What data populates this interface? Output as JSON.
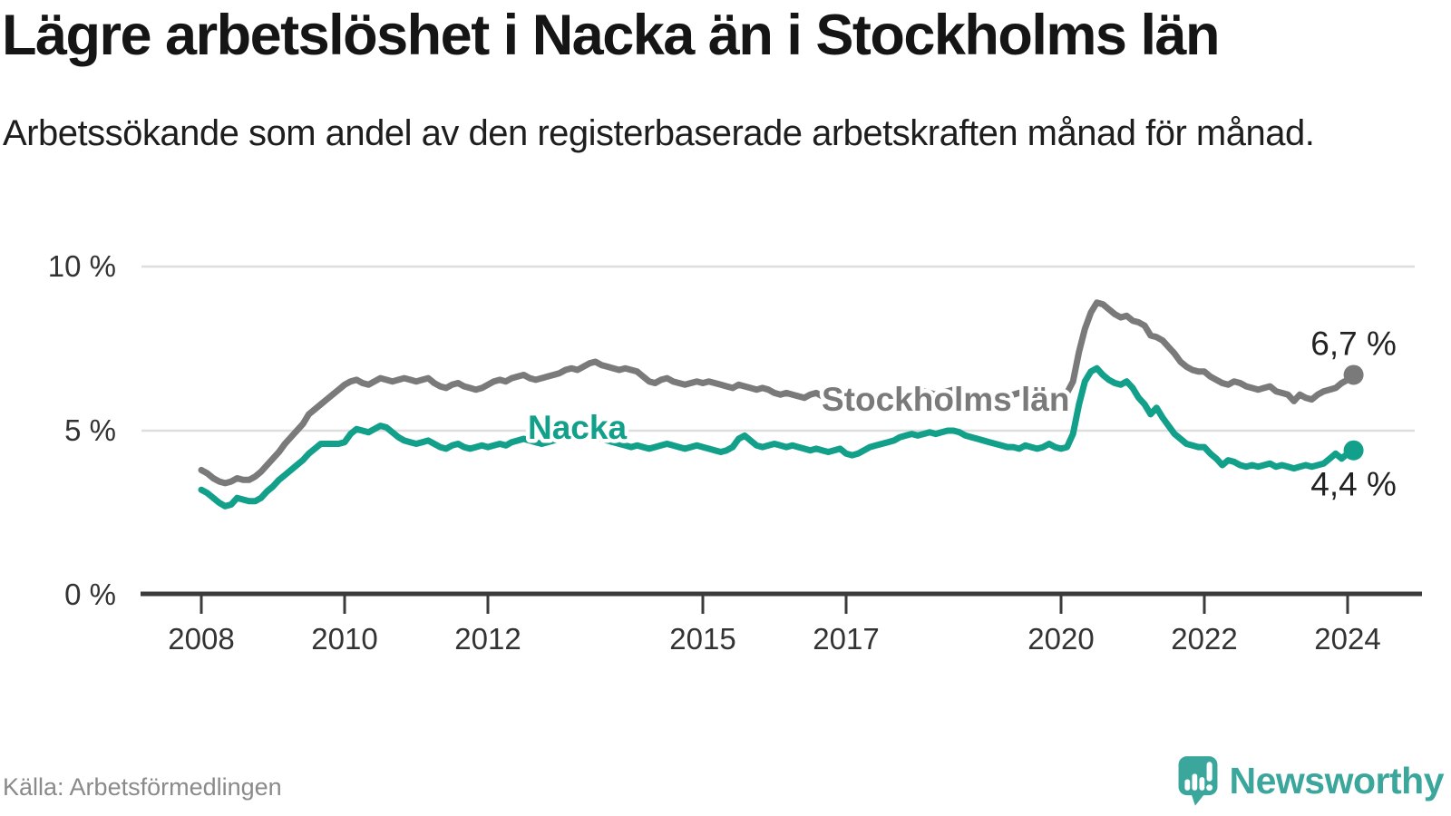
{
  "header": {
    "title": "Lägre arbetslöshet i Nacka än i Stockholms län",
    "subtitle": "Arbetssökande som andel av den registerbaserade arbetskraften månad för månad."
  },
  "footer": {
    "source": "Källa: Arbetsförmedlingen",
    "brand": "Newsworthy",
    "logo_icon": "newsworthy-speech-bubble-bar-chart-icon"
  },
  "colors": {
    "nacka_teal": "#12a08b",
    "stockholm_gray": "#7a7a7a",
    "gridline": "#dedede",
    "axis": "#3b3b3b",
    "tick_text": "#333333",
    "annotation_text": "#222222",
    "title_text": "#151515",
    "source_text": "#8a8a8a",
    "brand_teal": "#3ba79c"
  },
  "chart_data": {
    "type": "line",
    "unit": "%",
    "frequency": "monthly",
    "x_range": {
      "start": "2008-01",
      "end": "2024-02"
    },
    "x_ticks": [
      2008,
      2010,
      2012,
      2015,
      2017,
      2020,
      2022,
      2024
    ],
    "y_ticks": [
      {
        "value": 0,
        "label": "0 %"
      },
      {
        "value": 5,
        "label": "5 %"
      },
      {
        "value": 10,
        "label": "10 %"
      }
    ],
    "ylim": [
      0,
      10.5
    ],
    "grid": "horizontal",
    "series": [
      {
        "name": "Stockholms län",
        "color": "#7a7a7a",
        "end_value": 6.7,
        "end_label": "6,7 %",
        "values": [
          3.8,
          3.7,
          3.55,
          3.45,
          3.4,
          3.45,
          3.55,
          3.5,
          3.5,
          3.6,
          3.75,
          3.95,
          4.15,
          4.35,
          4.6,
          4.8,
          5.0,
          5.2,
          5.5,
          5.65,
          5.8,
          5.95,
          6.1,
          6.25,
          6.4,
          6.5,
          6.55,
          6.45,
          6.4,
          6.5,
          6.6,
          6.55,
          6.5,
          6.55,
          6.6,
          6.55,
          6.5,
          6.55,
          6.6,
          6.45,
          6.35,
          6.3,
          6.4,
          6.45,
          6.35,
          6.3,
          6.25,
          6.3,
          6.4,
          6.5,
          6.55,
          6.5,
          6.6,
          6.65,
          6.7,
          6.6,
          6.55,
          6.6,
          6.65,
          6.7,
          6.75,
          6.85,
          6.9,
          6.85,
          6.95,
          7.05,
          7.1,
          7.0,
          6.95,
          6.9,
          6.85,
          6.9,
          6.85,
          6.8,
          6.65,
          6.5,
          6.45,
          6.55,
          6.6,
          6.5,
          6.45,
          6.4,
          6.45,
          6.5,
          6.45,
          6.5,
          6.45,
          6.4,
          6.35,
          6.3,
          6.4,
          6.35,
          6.3,
          6.25,
          6.3,
          6.25,
          6.15,
          6.1,
          6.15,
          6.1,
          6.05,
          6.0,
          6.1,
          6.15,
          6.05,
          6.0,
          6.05,
          6.1,
          6.0,
          5.95,
          6.0,
          6.05,
          6.0,
          5.95,
          6.05,
          6.1,
          6.05,
          6.1,
          6.15,
          6.1,
          6.15,
          6.2,
          6.15,
          6.1,
          6.15,
          6.2,
          6.25,
          6.2,
          6.15,
          6.1,
          6.05,
          6.1,
          6.1,
          6.05,
          6.0,
          6.05,
          6.1,
          6.15,
          6.2,
          6.15,
          6.1,
          6.15,
          6.1,
          6.1,
          6.1,
          6.15,
          6.5,
          7.4,
          8.1,
          8.6,
          8.9,
          8.85,
          8.7,
          8.55,
          8.45,
          8.5,
          8.35,
          8.3,
          8.2,
          7.9,
          7.85,
          7.75,
          7.55,
          7.35,
          7.1,
          6.95,
          6.85,
          6.8,
          6.8,
          6.65,
          6.55,
          6.45,
          6.4,
          6.5,
          6.45,
          6.35,
          6.3,
          6.25,
          6.3,
          6.35,
          6.2,
          6.15,
          6.1,
          5.9,
          6.1,
          6.0,
          5.95,
          6.1,
          6.2,
          6.25,
          6.3,
          6.45,
          6.55,
          6.7
        ]
      },
      {
        "name": "Nacka",
        "color": "#12a08b",
        "end_value": 4.4,
        "end_label": "4,4 %",
        "values": [
          3.2,
          3.1,
          2.95,
          2.8,
          2.7,
          2.75,
          2.95,
          2.9,
          2.85,
          2.85,
          2.95,
          3.15,
          3.3,
          3.5,
          3.65,
          3.8,
          3.95,
          4.1,
          4.3,
          4.45,
          4.6,
          4.6,
          4.6,
          4.6,
          4.65,
          4.9,
          5.05,
          5.0,
          4.95,
          5.05,
          5.15,
          5.1,
          4.95,
          4.8,
          4.7,
          4.65,
          4.6,
          4.65,
          4.7,
          4.6,
          4.5,
          4.45,
          4.55,
          4.6,
          4.5,
          4.45,
          4.5,
          4.55,
          4.5,
          4.55,
          4.6,
          4.55,
          4.65,
          4.7,
          4.75,
          4.7,
          4.65,
          4.6,
          4.65,
          4.7,
          4.75,
          4.8,
          4.85,
          4.8,
          4.75,
          4.8,
          4.85,
          4.75,
          4.7,
          4.65,
          4.6,
          4.55,
          4.5,
          4.55,
          4.5,
          4.45,
          4.5,
          4.55,
          4.6,
          4.55,
          4.5,
          4.45,
          4.5,
          4.55,
          4.5,
          4.45,
          4.4,
          4.35,
          4.4,
          4.5,
          4.75,
          4.85,
          4.7,
          4.55,
          4.5,
          4.55,
          4.6,
          4.55,
          4.5,
          4.55,
          4.5,
          4.45,
          4.4,
          4.45,
          4.4,
          4.35,
          4.4,
          4.45,
          4.3,
          4.25,
          4.3,
          4.4,
          4.5,
          4.55,
          4.6,
          4.65,
          4.7,
          4.8,
          4.85,
          4.9,
          4.85,
          4.9,
          4.95,
          4.9,
          4.95,
          5.0,
          5.0,
          4.95,
          4.85,
          4.8,
          4.75,
          4.7,
          4.65,
          4.6,
          4.55,
          4.5,
          4.5,
          4.45,
          4.55,
          4.5,
          4.45,
          4.5,
          4.6,
          4.5,
          4.45,
          4.5,
          4.9,
          5.8,
          6.5,
          6.8,
          6.9,
          6.7,
          6.55,
          6.45,
          6.4,
          6.5,
          6.3,
          6.0,
          5.8,
          5.5,
          5.7,
          5.4,
          5.15,
          4.9,
          4.75,
          4.6,
          4.55,
          4.5,
          4.5,
          4.3,
          4.15,
          3.95,
          4.1,
          4.05,
          3.95,
          3.9,
          3.95,
          3.9,
          3.95,
          4.0,
          3.9,
          3.95,
          3.9,
          3.85,
          3.9,
          3.95,
          3.9,
          3.95,
          4.0,
          4.15,
          4.3,
          4.15,
          4.3,
          4.4
        ]
      }
    ]
  }
}
